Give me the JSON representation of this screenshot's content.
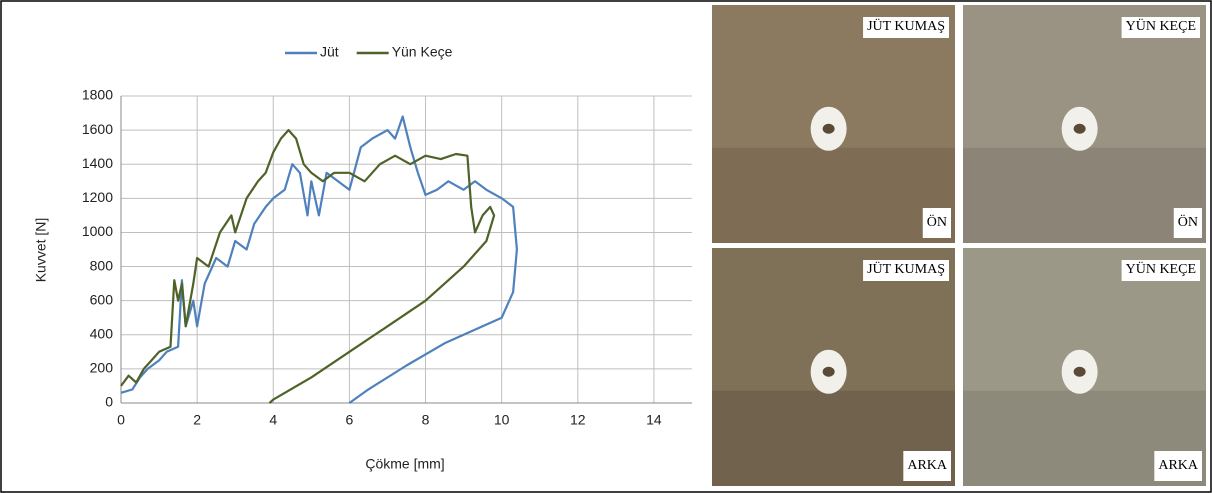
{
  "chart_data": {
    "type": "line",
    "xlabel": "Çökme [mm]",
    "ylabel": "Kuvvet [N]",
    "xlim": [
      0,
      15
    ],
    "xticks": [
      0,
      2,
      4,
      6,
      8,
      10,
      12,
      14
    ],
    "ylim": [
      0,
      1800
    ],
    "yticks": [
      0,
      200,
      400,
      600,
      800,
      1000,
      1200,
      1400,
      1600,
      1800
    ],
    "grid": true,
    "legend": "top",
    "series": [
      {
        "name": "Jüt",
        "color": "#4f81bd",
        "x": [
          0,
          0.3,
          0.5,
          0.7,
          1,
          1.2,
          1.5,
          1.6,
          1.7,
          1.9,
          2,
          2.2,
          2.5,
          2.8,
          3,
          3.3,
          3.5,
          3.8,
          4,
          4.3,
          4.5,
          4.7,
          4.9,
          5,
          5.2,
          5.4,
          5.7,
          6,
          6.3,
          6.6,
          7,
          7.2,
          7.4,
          7.6,
          7.8,
          8,
          8.3,
          8.6,
          9,
          9.3,
          9.6,
          10,
          10.3,
          10.4,
          10.3,
          10,
          9.5,
          8.5,
          7.5,
          6.5,
          6
        ],
        "values": [
          60,
          80,
          150,
          200,
          250,
          300,
          330,
          720,
          450,
          600,
          450,
          700,
          850,
          800,
          950,
          900,
          1050,
          1150,
          1200,
          1250,
          1400,
          1350,
          1100,
          1300,
          1100,
          1350,
          1300,
          1250,
          1500,
          1550,
          1600,
          1550,
          1680,
          1500,
          1350,
          1220,
          1250,
          1300,
          1250,
          1300,
          1250,
          1200,
          1150,
          900,
          650,
          500,
          450,
          350,
          220,
          80,
          0
        ]
      },
      {
        "name": "Yün Keçe",
        "color": "#4f6228",
        "x": [
          0,
          0.2,
          0.4,
          0.6,
          0.8,
          1,
          1.3,
          1.4,
          1.5,
          1.6,
          1.7,
          1.9,
          2,
          2.3,
          2.6,
          2.9,
          3,
          3.3,
          3.6,
          3.8,
          4,
          4.2,
          4.4,
          4.6,
          4.8,
          5,
          5.3,
          5.6,
          6,
          6.4,
          6.8,
          7.2,
          7.6,
          8,
          8.4,
          8.8,
          9.1,
          9.2,
          9.3,
          9.5,
          9.7,
          9.8,
          9.6,
          9,
          8,
          7,
          6,
          5,
          4,
          3.9
        ],
        "values": [
          100,
          160,
          120,
          200,
          250,
          300,
          330,
          720,
          600,
          700,
          450,
          700,
          850,
          800,
          1000,
          1100,
          1000,
          1200,
          1300,
          1350,
          1470,
          1550,
          1600,
          1550,
          1400,
          1350,
          1300,
          1350,
          1350,
          1300,
          1400,
          1450,
          1400,
          1450,
          1430,
          1460,
          1450,
          1150,
          1000,
          1100,
          1150,
          1100,
          950,
          800,
          600,
          450,
          300,
          150,
          20,
          0
        ]
      }
    ]
  },
  "photos": [
    {
      "top_label": "JÜT KUMAŞ",
      "bottom_label": "ÖN"
    },
    {
      "top_label": "YÜN KEÇE",
      "bottom_label": "ÖN"
    },
    {
      "top_label": "JÜT KUMAŞ",
      "bottom_label": "ARKA"
    },
    {
      "top_label": "YÜN KEÇE",
      "bottom_label": "ARKA"
    }
  ]
}
